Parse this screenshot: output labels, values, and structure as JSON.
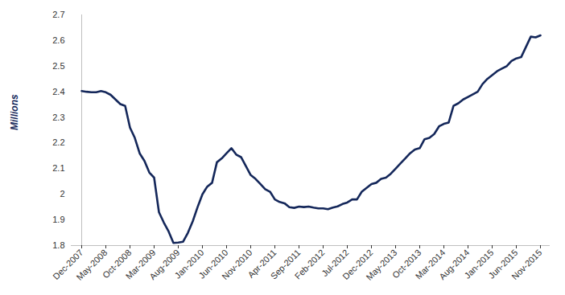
{
  "chart_data": {
    "type": "line",
    "y_label": "Millions",
    "categories": [
      "Dec-2007",
      null,
      null,
      null,
      null,
      "May-2008",
      null,
      null,
      null,
      null,
      "Oct-2008",
      null,
      null,
      null,
      null,
      "Mar-2009",
      null,
      null,
      null,
      null,
      "Aug-2009",
      null,
      null,
      null,
      null,
      "Jan-2010",
      null,
      null,
      null,
      null,
      "Jun-2010",
      null,
      null,
      null,
      null,
      "Nov-2010",
      null,
      null,
      null,
      null,
      "Apr-2011",
      null,
      null,
      null,
      null,
      "Sep-2011",
      null,
      null,
      null,
      null,
      "Feb-2012",
      null,
      null,
      null,
      null,
      "Jul-2012",
      null,
      null,
      null,
      null,
      "Dec-2012",
      null,
      null,
      null,
      null,
      "May-2013",
      null,
      null,
      null,
      null,
      "Oct-2013",
      null,
      null,
      null,
      null,
      "Mar-2014",
      null,
      null,
      null,
      null,
      "Aug-2014",
      null,
      null,
      null,
      null,
      "Jan-2015",
      null,
      null,
      null,
      null,
      "Jun-2015",
      null,
      null,
      null,
      null,
      "Nov-2015"
    ],
    "values": [
      2.403,
      2.4,
      2.398,
      2.398,
      2.403,
      2.398,
      2.388,
      2.37,
      2.352,
      2.345,
      2.26,
      2.22,
      2.16,
      2.13,
      2.085,
      2.065,
      1.93,
      1.89,
      1.855,
      1.81,
      1.812,
      1.815,
      1.85,
      1.895,
      1.95,
      2.0,
      2.03,
      2.045,
      2.125,
      2.14,
      2.16,
      2.18,
      2.155,
      2.145,
      2.11,
      2.075,
      2.06,
      2.04,
      2.02,
      2.01,
      1.98,
      1.97,
      1.965,
      1.95,
      1.947,
      1.952,
      1.95,
      1.952,
      1.948,
      1.945,
      1.945,
      1.942,
      1.948,
      1.953,
      1.962,
      1.968,
      1.98,
      1.98,
      2.01,
      2.025,
      2.04,
      2.045,
      2.06,
      2.065,
      2.08,
      2.1,
      2.12,
      2.14,
      2.16,
      2.175,
      2.18,
      2.215,
      2.22,
      2.235,
      2.265,
      2.275,
      2.28,
      2.345,
      2.355,
      2.37,
      2.38,
      2.39,
      2.4,
      2.43,
      2.45,
      2.465,
      2.48,
      2.49,
      2.5,
      2.52,
      2.53,
      2.535,
      2.575,
      2.615,
      2.612,
      2.62
    ],
    "color": "#14275a",
    "ylim": [
      1.8,
      2.7
    ],
    "yticks": [
      1.8,
      1.9,
      2,
      2.1,
      2.2,
      2.3,
      2.4,
      2.5,
      2.6,
      2.7
    ],
    "grid": false
  }
}
